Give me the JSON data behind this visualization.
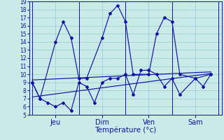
{
  "xlabel": "Température (°c)",
  "ylim": [
    5,
    19
  ],
  "yticks": [
    5,
    6,
    7,
    8,
    9,
    10,
    11,
    12,
    13,
    14,
    15,
    16,
    17,
    18,
    19
  ],
  "day_labels": [
    "Jeu",
    "Dim",
    "Ven",
    "Sam"
  ],
  "day_positions": [
    1.5,
    4.5,
    7.5,
    10.5
  ],
  "day_lines": [
    0.0,
    3.0,
    6.0,
    9.0,
    12.0
  ],
  "xlim": [
    -0.2,
    12.2
  ],
  "bg": "#caeaea",
  "grid_color": "#99cccc",
  "lc": "#1111aa",
  "series_main": {
    "x": [
      0.0,
      0.5,
      1.5,
      2.0,
      2.5,
      3.0,
      3.5,
      4.5,
      5.0,
      5.5,
      6.0,
      6.5,
      7.5,
      8.0,
      8.5,
      9.0,
      9.5,
      10.5,
      11.5
    ],
    "y": [
      9,
      7,
      14,
      16.5,
      14.5,
      9.5,
      9.5,
      14.5,
      17.5,
      18.5,
      16.5,
      10.0,
      10.0,
      15.0,
      17.0,
      16.5,
      10.0,
      9.5,
      10.0
    ]
  },
  "series_low": {
    "x": [
      0.0,
      0.5,
      1.0,
      1.5,
      2.0,
      2.5,
      3.0,
      3.5,
      4.0,
      4.5,
      5.0,
      5.5,
      6.0,
      6.5,
      7.0,
      7.5,
      8.0,
      8.5,
      9.0,
      9.5,
      10.5,
      11.0,
      11.5
    ],
    "y": [
      9,
      7,
      6.5,
      6.0,
      6.5,
      5.5,
      9.0,
      8.5,
      6.5,
      9.0,
      9.5,
      9.5,
      10.0,
      7.5,
      10.5,
      10.5,
      10.0,
      8.5,
      9.5,
      7.5,
      9.5,
      8.5,
      10.0
    ]
  },
  "trend_high": {
    "x": [
      0.0,
      11.5
    ],
    "y": [
      9.3,
      10.3
    ]
  },
  "trend_low": {
    "x": [
      0.0,
      11.5
    ],
    "y": [
      7.2,
      10.1
    ]
  }
}
